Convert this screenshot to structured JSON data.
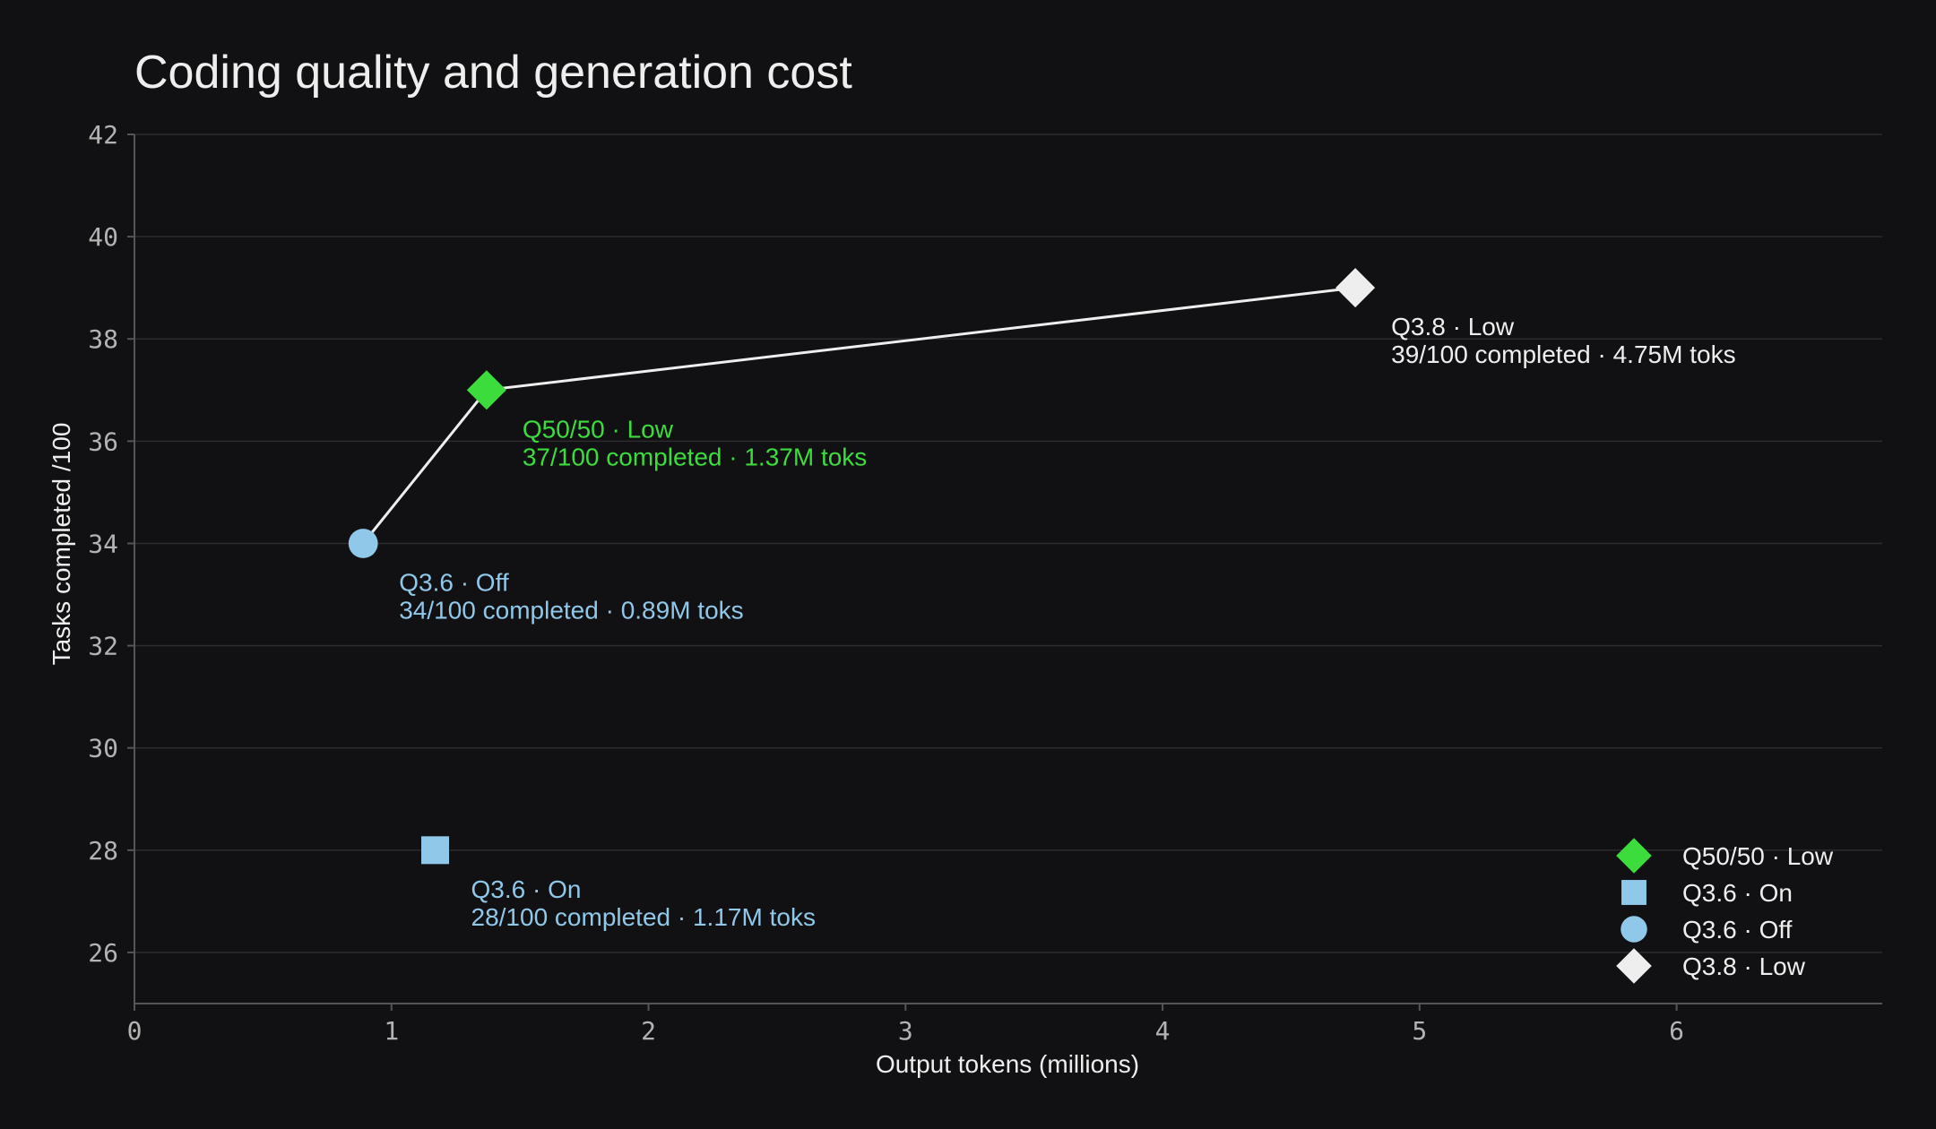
{
  "chart_data": {
    "type": "scatter",
    "title": "Coding quality and generation cost",
    "xlabel": "Output tokens (millions)",
    "ylabel": "Tasks completed /100",
    "xlim": [
      0,
      6.8
    ],
    "ylim": [
      25,
      42
    ],
    "xticks": [
      0,
      1,
      2,
      3,
      4,
      5,
      6
    ],
    "yticks": [
      26,
      28,
      30,
      32,
      34,
      36,
      38,
      40,
      42
    ],
    "grid": "horizontal",
    "legend_position": "bottom-right",
    "series": [
      {
        "name": "Q50/50 · Low",
        "marker": "diamond",
        "color": "#3ddc3d",
        "x": 1.37,
        "y": 37,
        "label_line1": "Q50/50 · Low",
        "label_line2": "37/100 completed · 1.37M toks"
      },
      {
        "name": "Q3.6 · On",
        "marker": "square",
        "color": "#90c8ea",
        "x": 1.17,
        "y": 28,
        "label_line1": "Q3.6 · On",
        "label_line2": "28/100 completed · 1.17M toks"
      },
      {
        "name": "Q3.6 · Off",
        "marker": "circle",
        "color": "#90c8ea",
        "x": 0.89,
        "y": 34,
        "label_line1": "Q3.6 · Off",
        "label_line2": "34/100 completed · 0.89M toks"
      },
      {
        "name": "Q3.8 · Low",
        "marker": "diamond",
        "color": "#eeeeee",
        "x": 4.75,
        "y": 39,
        "label_line1": "Q3.8 · Low",
        "label_line2": "39/100 completed · 4.75M toks"
      }
    ],
    "connector": {
      "color": "#eeeeee",
      "points": [
        {
          "x": 0.89,
          "y": 34
        },
        {
          "x": 1.37,
          "y": 37
        },
        {
          "x": 4.75,
          "y": 39
        }
      ]
    }
  },
  "colors": {
    "background": "#111113",
    "text": "#eeeeee",
    "tick_text": "#b3b3b3",
    "grid": "#2c2c2f",
    "axis": "#555558"
  }
}
